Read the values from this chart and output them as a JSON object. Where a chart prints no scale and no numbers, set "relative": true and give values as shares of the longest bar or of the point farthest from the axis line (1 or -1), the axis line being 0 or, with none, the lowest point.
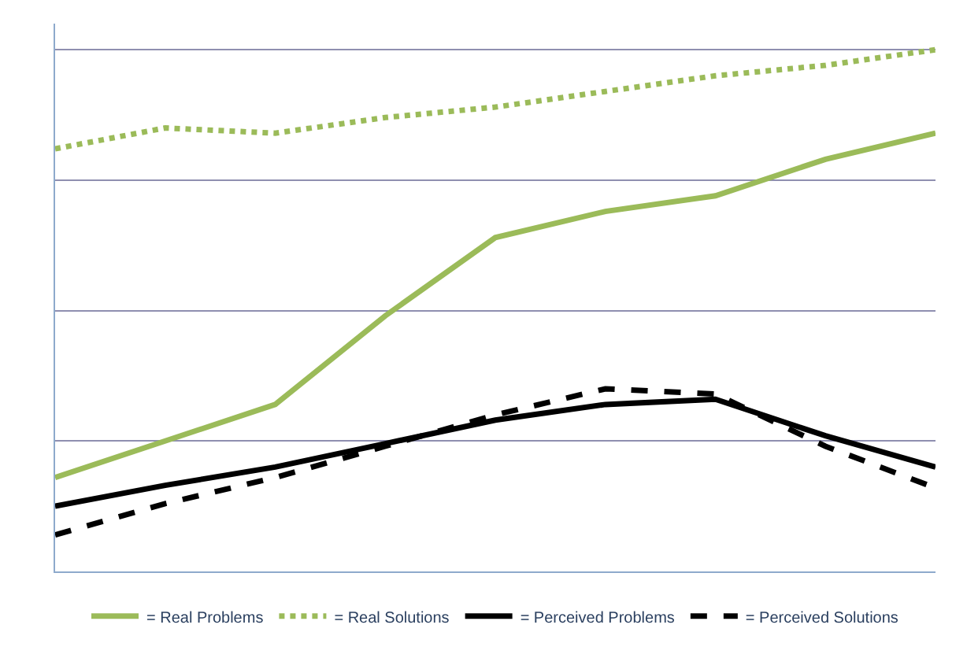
{
  "chart_data": {
    "type": "line",
    "relative": true,
    "categories": [
      null,
      null,
      null,
      null,
      null,
      null,
      null,
      null,
      null
    ],
    "series": [
      {
        "name": "= Real Problems",
        "color": "#9bbb59",
        "line_style": "solid",
        "values": [
          0.18,
          0.25,
          0.32,
          0.49,
          0.64,
          0.69,
          0.72,
          0.79,
          0.84
        ]
      },
      {
        "name": "= Real Solutions",
        "color": "#9bbb59",
        "line_style": "dotted",
        "values": [
          0.81,
          0.85,
          0.84,
          0.87,
          0.89,
          0.92,
          0.95,
          0.97,
          1
        ]
      },
      {
        "name": "= Perceived Problems",
        "color": "#000000",
        "line_style": "solid",
        "values": [
          0.125,
          0.165,
          0.2,
          0.245,
          0.29,
          0.32,
          0.33,
          0.26,
          0.2
        ]
      },
      {
        "name": "= Perceived Solutions",
        "color": "#000000",
        "line_style": "dashed",
        "values": [
          0.07,
          0.13,
          0.18,
          0.24,
          0.3,
          0.35,
          0.34,
          0.24,
          0.16
        ]
      }
    ],
    "grid": "y",
    "legend": "bottom",
    "marker": "none"
  }
}
